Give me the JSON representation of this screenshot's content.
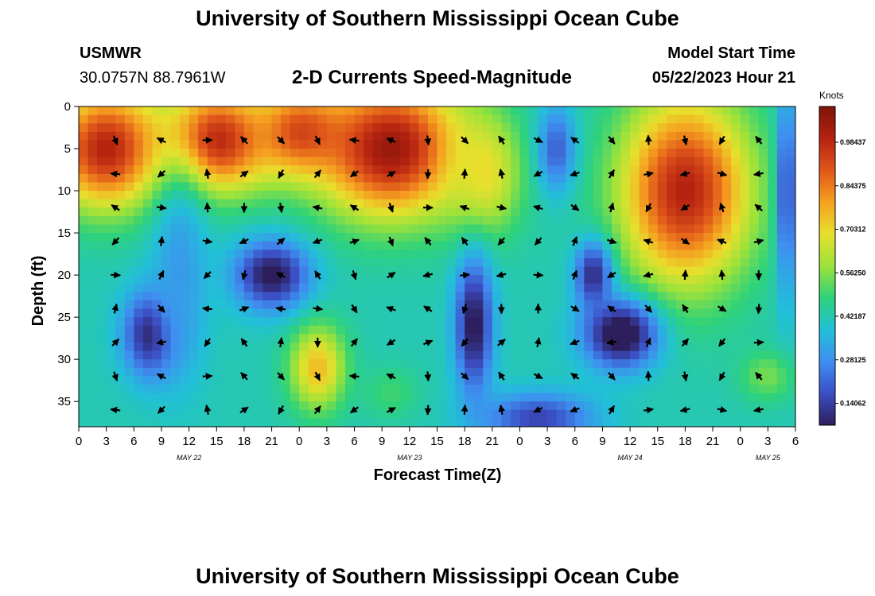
{
  "page": {
    "title": "University of Southern Mississippi Ocean Cube",
    "station": "USMWR",
    "coords": "30.0757N  88.7961W",
    "plot_title": "2-D Currents Speed-Magnitude",
    "model_label": "Model Start Time",
    "model_time": "05/22/2023 Hour 21",
    "bottom_title": "University of Southern Mississippi Ocean Cube"
  },
  "colors": {
    "scale": [
      "#2d1e5c",
      "#3b4fc4",
      "#3f8ef0",
      "#22c0d8",
      "#2ed27a",
      "#9be23a",
      "#e8e02c",
      "#f5a020",
      "#e0561a",
      "#b52210",
      "#7c1408"
    ]
  },
  "chart_data": {
    "type": "heatmap",
    "title": "2-D Currents Speed-Magnitude",
    "xlabel": "Forecast Time(Z)",
    "ylabel": "Depth (ft)",
    "x_tick_labels": [
      "0",
      "3",
      "6",
      "9",
      "12",
      "15",
      "18",
      "21",
      "0",
      "3",
      "6",
      "9",
      "12",
      "15",
      "18",
      "21",
      "0",
      "3",
      "6",
      "9",
      "12",
      "15",
      "18",
      "21",
      "0",
      "3",
      "6"
    ],
    "x_range_hours": [
      0,
      78
    ],
    "day_labels": [
      {
        "label": "MAY 22",
        "hour": 12
      },
      {
        "label": "MAY 23",
        "hour": 36
      },
      {
        "label": "MAY 24",
        "hour": 60
      },
      {
        "label": "MAY 25",
        "hour": 75
      }
    ],
    "y_ticks": [
      0,
      5,
      10,
      15,
      20,
      25,
      30,
      35
    ],
    "ylim": [
      0,
      38
    ],
    "colorbar": {
      "label": "Knots",
      "range": [
        0.07,
        1.1
      ],
      "ticks": [
        "0.98437",
        "0.84375",
        "0.70312",
        "0.56250",
        "0.42187",
        "0.28125",
        "0.14062"
      ],
      "tick_values": [
        0.98437,
        0.84375,
        0.70312,
        0.5625,
        0.42187,
        0.28125,
        0.14062
      ]
    },
    "speed_hotspots": [
      {
        "hour": 3,
        "depth": 5,
        "speed": 1.0,
        "sh": 6,
        "sd": 7
      },
      {
        "hour": 15,
        "depth": 4,
        "speed": 1.0,
        "sh": 6,
        "sd": 6
      },
      {
        "hour": 24,
        "depth": 3,
        "speed": 0.9,
        "sh": 5,
        "sd": 5
      },
      {
        "hour": 34,
        "depth": 5,
        "speed": 1.05,
        "sh": 8,
        "sd": 8
      },
      {
        "hour": 44,
        "depth": 8,
        "speed": 0.7,
        "sh": 4,
        "sd": 7
      },
      {
        "hour": 66,
        "depth": 10,
        "speed": 1.0,
        "sh": 7,
        "sd": 11
      },
      {
        "hour": 26,
        "depth": 31,
        "speed": 0.75,
        "sh": 3,
        "sd": 5
      },
      {
        "hour": 75,
        "depth": 32,
        "speed": 0.55,
        "sh": 3,
        "sd": 3
      },
      {
        "hour": 34,
        "depth": 34,
        "speed": 0.5,
        "sh": 3,
        "sd": 3
      },
      {
        "hour": 8,
        "depth": 27,
        "speed": 0.05,
        "sh": 3,
        "sd": 5
      },
      {
        "hour": 21,
        "depth": 20,
        "speed": 0.05,
        "sh": 4,
        "sd": 4
      },
      {
        "hour": 43,
        "depth": 26,
        "speed": 0.05,
        "sh": 2,
        "sd": 8
      },
      {
        "hour": 59,
        "depth": 27,
        "speed": 0.0,
        "sh": 4,
        "sd": 4
      },
      {
        "hour": 56,
        "depth": 20,
        "speed": 0.1,
        "sh": 2,
        "sd": 4
      },
      {
        "hour": 52,
        "depth": 5,
        "speed": 0.2,
        "sh": 2,
        "sd": 5
      },
      {
        "hour": 50,
        "depth": 37,
        "speed": 0.15,
        "sh": 6,
        "sd": 3
      },
      {
        "hour": 77,
        "depth": 10,
        "speed": 0.15,
        "sh": 1,
        "sd": 12
      },
      {
        "hour": 11,
        "depth": 20,
        "speed": 0.3,
        "sh": 3,
        "sd": 12
      }
    ],
    "background_speed": 0.42,
    "arrow_hours": [
      4,
      9,
      14,
      18,
      22,
      26,
      30,
      34,
      38,
      42,
      46,
      50,
      54,
      58,
      62,
      66,
      70,
      74
    ],
    "arrow_depths": [
      4,
      8,
      12,
      16,
      20,
      24,
      28,
      32,
      36
    ]
  }
}
